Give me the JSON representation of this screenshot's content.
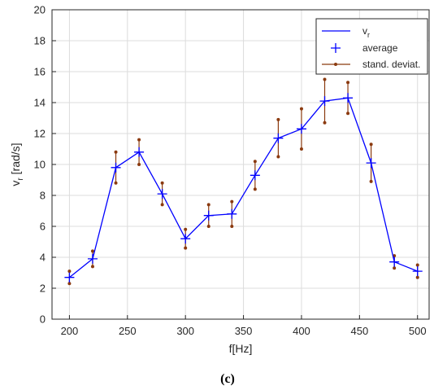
{
  "chart_data": {
    "type": "line",
    "title": "",
    "xlabel": "f[Hz]",
    "ylabel": {
      "base": "v",
      "sub": "r",
      "unit": " [rad/s]"
    },
    "xlim": [
      185,
      510
    ],
    "ylim": [
      0,
      20
    ],
    "xticks": [
      200,
      250,
      300,
      350,
      400,
      450,
      500
    ],
    "yticks": [
      0,
      2,
      4,
      6,
      8,
      10,
      12,
      14,
      16,
      18,
      20
    ],
    "grid": true,
    "legend_position": "top-right",
    "series": [
      {
        "name": "vr",
        "kind": "line",
        "color": "#0000ff"
      },
      {
        "name": "average",
        "kind": "marker",
        "marker": "+",
        "color": "#0000ff"
      },
      {
        "name": "stand. deviat.",
        "kind": "errorbar",
        "color": "#8b3a0f"
      }
    ],
    "x": [
      200,
      220,
      240,
      260,
      280,
      300,
      320,
      340,
      360,
      380,
      400,
      420,
      440,
      460,
      480,
      500
    ],
    "mean": [
      2.7,
      3.9,
      9.8,
      10.8,
      8.1,
      5.2,
      6.7,
      6.8,
      9.3,
      11.7,
      12.3,
      14.1,
      14.3,
      10.1,
      3.7,
      3.1
    ],
    "upper": [
      3.1,
      4.4,
      10.8,
      11.6,
      8.8,
      5.8,
      7.4,
      7.6,
      10.2,
      12.9,
      13.6,
      15.5,
      15.3,
      11.3,
      4.1,
      3.5
    ],
    "lower": [
      2.3,
      3.4,
      8.8,
      10.0,
      7.4,
      4.6,
      6.0,
      6.0,
      8.4,
      10.5,
      11.0,
      12.7,
      13.3,
      8.9,
      3.3,
      2.7
    ]
  },
  "legend": {
    "line_label_base": "v",
    "line_label_sub": "r",
    "average_label": "average",
    "std_label": "stand. deviat."
  },
  "caption": "(c)"
}
